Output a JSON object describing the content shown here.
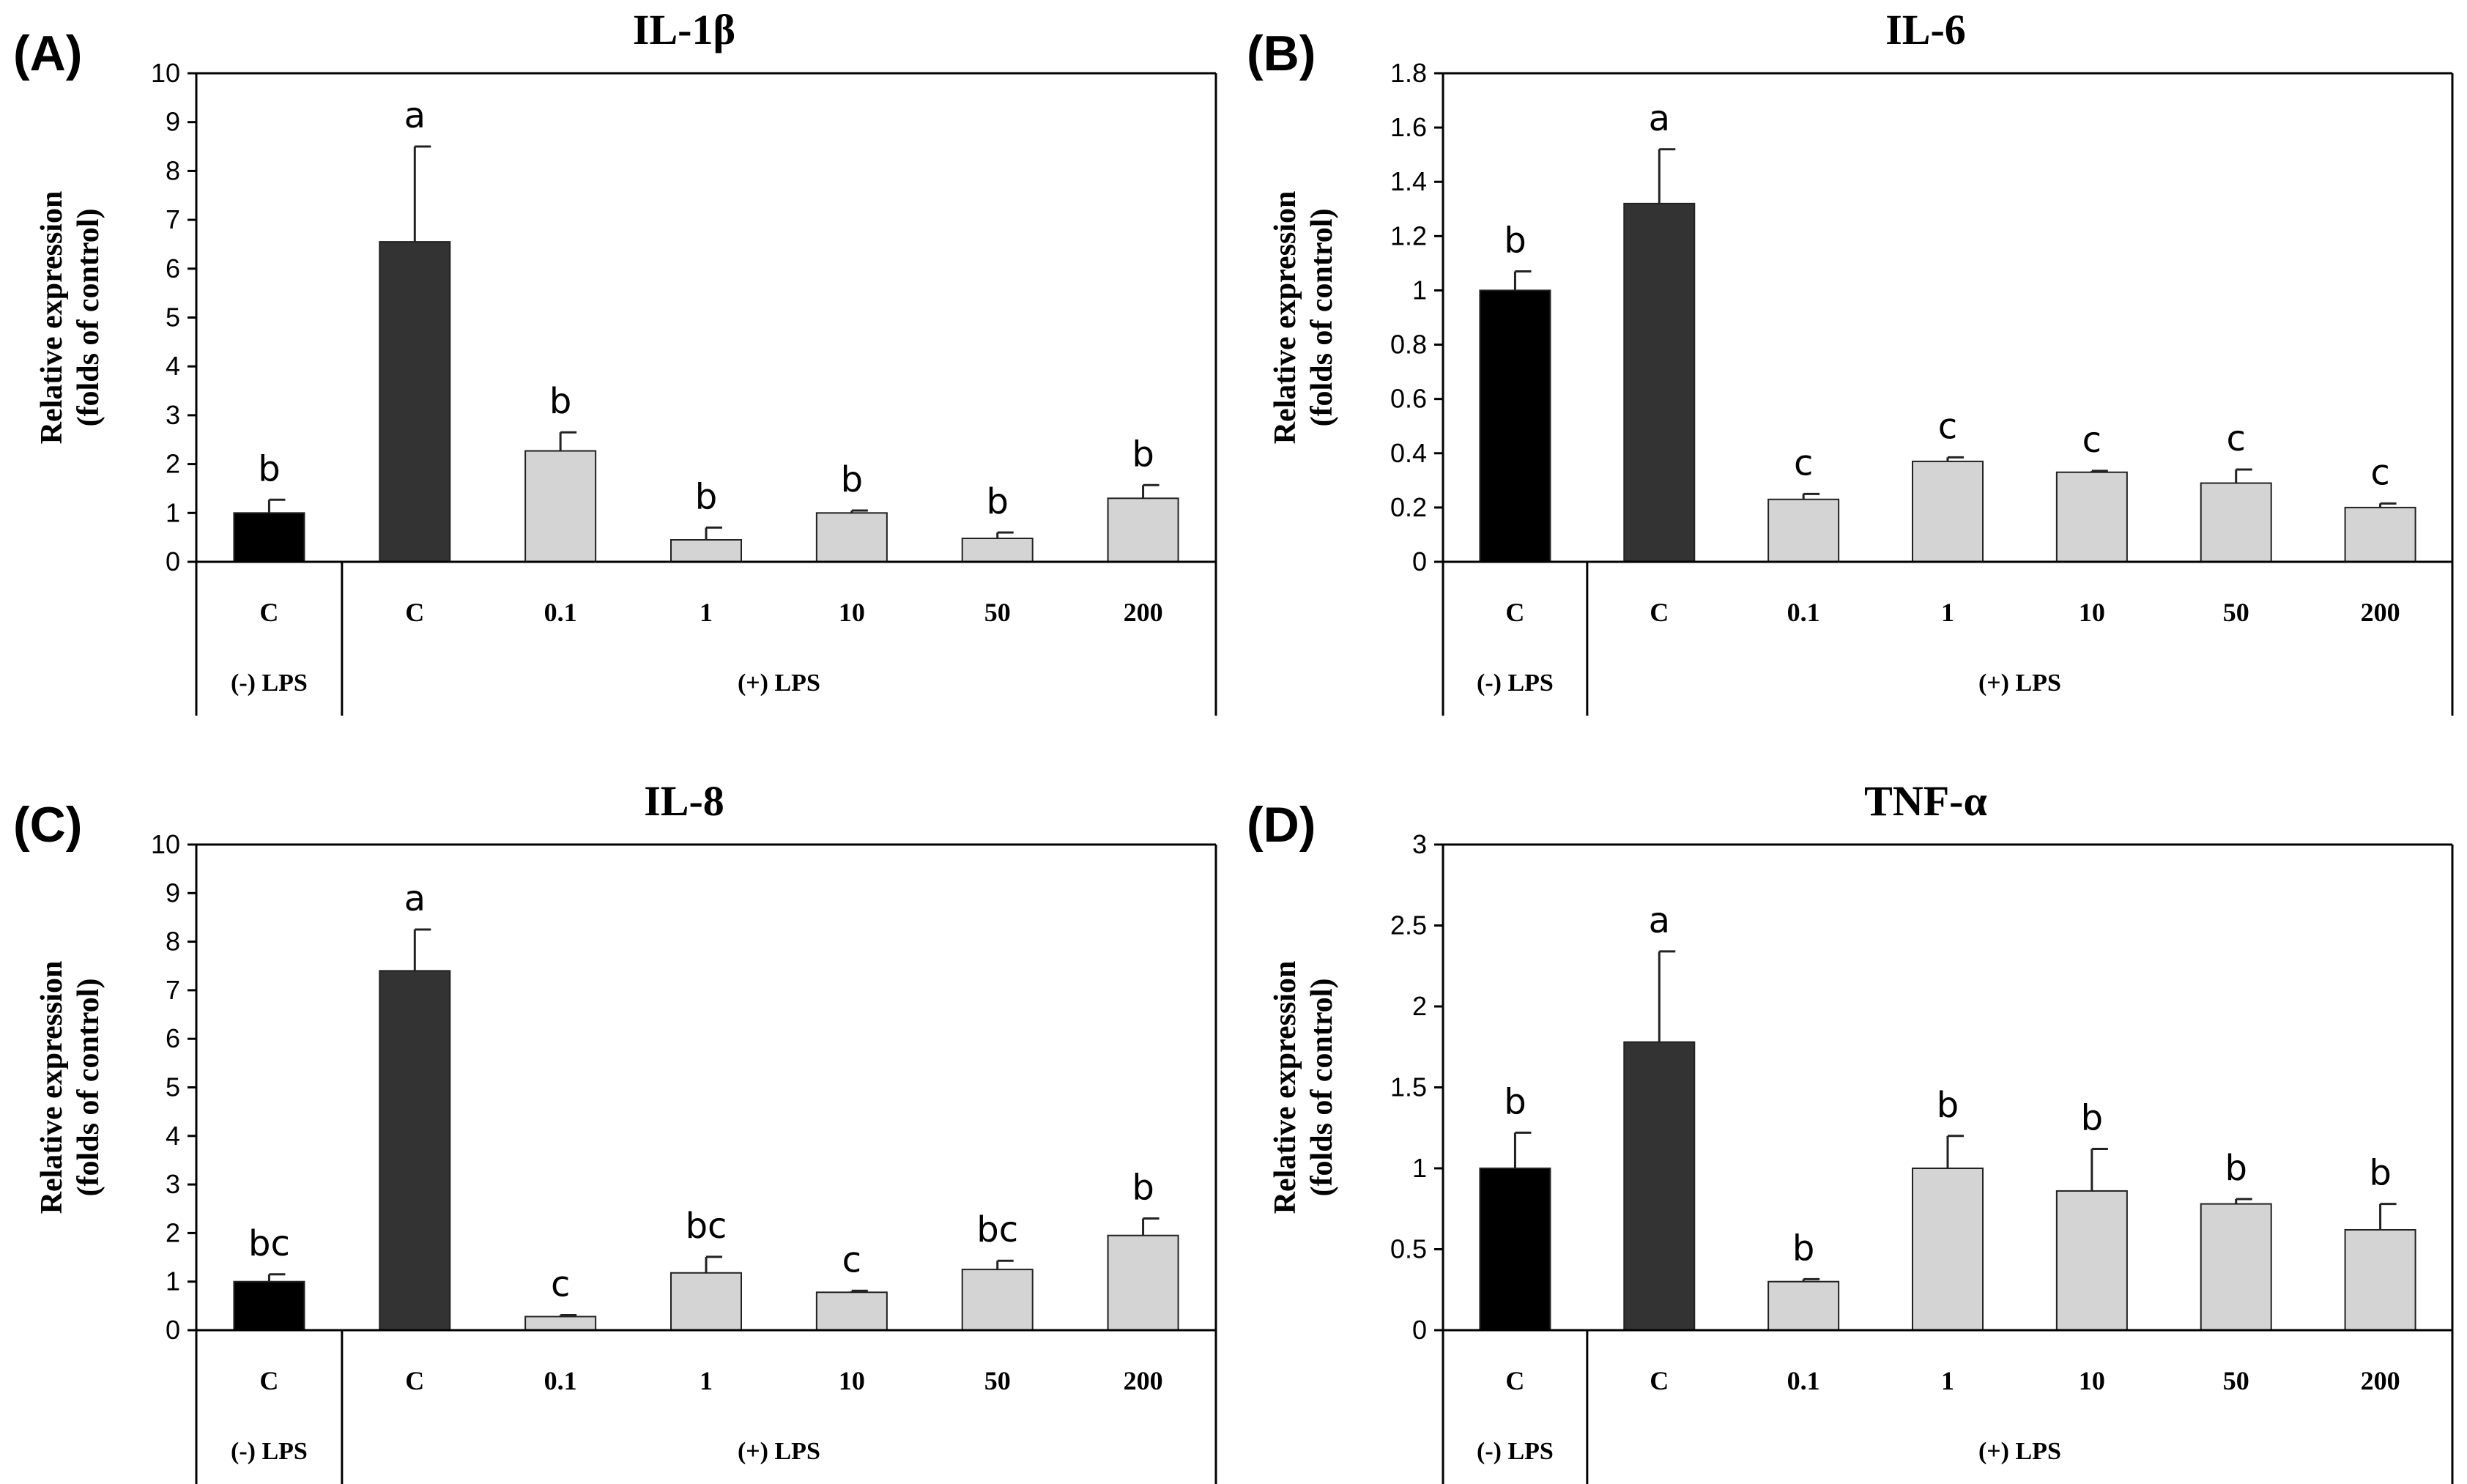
{
  "panels": [
    {
      "letter": "(A)"
    },
    {
      "letter": "(B)"
    },
    {
      "letter": "(C)"
    },
    {
      "letter": "(D)"
    }
  ],
  "colors": {
    "neg_control": "#000000",
    "pos_control": "#333333",
    "treatment": "#d4d4d4"
  },
  "chart_data": [
    {
      "type": "bar",
      "title": "IL-1β",
      "ylabel_line1": "Relative expression",
      "ylabel_line2": "(folds of control)",
      "ylim": [
        0,
        10
      ],
      "yticks": [
        0,
        1,
        2,
        3,
        4,
        5,
        6,
        7,
        8,
        9,
        10
      ],
      "categories": [
        "C",
        "C",
        "0.1",
        "1",
        "10",
        "50",
        "200"
      ],
      "groups": [
        {
          "label": "(-) LPS",
          "span": 1
        },
        {
          "label": "(+) LPS",
          "span": 6
        }
      ],
      "values": [
        1.0,
        6.55,
        2.27,
        0.45,
        1.0,
        0.48,
        1.3
      ],
      "errors": [
        0.27,
        1.95,
        0.38,
        0.25,
        0.05,
        0.12,
        0.27
      ],
      "significance": [
        "b",
        "a",
        "b",
        "b",
        "b",
        "b",
        "b"
      ]
    },
    {
      "type": "bar",
      "title": "IL-6",
      "ylabel_line1": "Relative expression",
      "ylabel_line2": "(folds of control)",
      "ylim": [
        0,
        1.8
      ],
      "yticks": [
        0,
        0.2,
        0.4,
        0.6,
        0.8,
        1,
        1.2,
        1.4,
        1.6,
        1.8
      ],
      "categories": [
        "C",
        "C",
        "0.1",
        "1",
        "10",
        "50",
        "200"
      ],
      "groups": [
        {
          "label": "(-) LPS",
          "span": 1
        },
        {
          "label": "(+) LPS",
          "span": 6
        }
      ],
      "values": [
        1.0,
        1.32,
        0.23,
        0.37,
        0.33,
        0.29,
        0.2
      ],
      "errors": [
        0.07,
        0.2,
        0.02,
        0.015,
        0.005,
        0.05,
        0.015
      ],
      "significance": [
        "b",
        "a",
        "c",
        "c",
        "c",
        "c",
        "c"
      ]
    },
    {
      "type": "bar",
      "title": "IL-8",
      "ylabel_line1": "Relative expression",
      "ylabel_line2": "(folds of control)",
      "ylim": [
        0,
        10
      ],
      "yticks": [
        0,
        1,
        2,
        3,
        4,
        5,
        6,
        7,
        8,
        9,
        10
      ],
      "categories": [
        "C",
        "C",
        "0.1",
        "1",
        "10",
        "50",
        "200"
      ],
      "groups": [
        {
          "label": "(-) LPS",
          "span": 1
        },
        {
          "label": "(+) LPS",
          "span": 6
        }
      ],
      "values": [
        1.0,
        7.4,
        0.28,
        1.18,
        0.78,
        1.25,
        1.95
      ],
      "errors": [
        0.15,
        0.85,
        0.03,
        0.33,
        0.03,
        0.18,
        0.35
      ],
      "significance": [
        "bc",
        "a",
        "c",
        "bc",
        "c",
        "bc",
        "b"
      ]
    },
    {
      "type": "bar",
      "title": "TNF-α",
      "ylabel_line1": "Relative expression",
      "ylabel_line2": "(folds of control)",
      "ylim": [
        0,
        3
      ],
      "yticks": [
        0,
        0.5,
        1,
        1.5,
        2,
        2.5,
        3
      ],
      "categories": [
        "C",
        "C",
        "0.1",
        "1",
        "10",
        "50",
        "200"
      ],
      "groups": [
        {
          "label": "(-) LPS",
          "span": 1
        },
        {
          "label": "(+) LPS",
          "span": 6
        }
      ],
      "values": [
        1.0,
        1.78,
        0.3,
        1.0,
        0.86,
        0.78,
        0.62
      ],
      "errors": [
        0.22,
        0.56,
        0.015,
        0.2,
        0.26,
        0.03,
        0.16
      ],
      "significance": [
        "b",
        "a",
        "b",
        "b",
        "b",
        "b",
        "b"
      ]
    }
  ]
}
